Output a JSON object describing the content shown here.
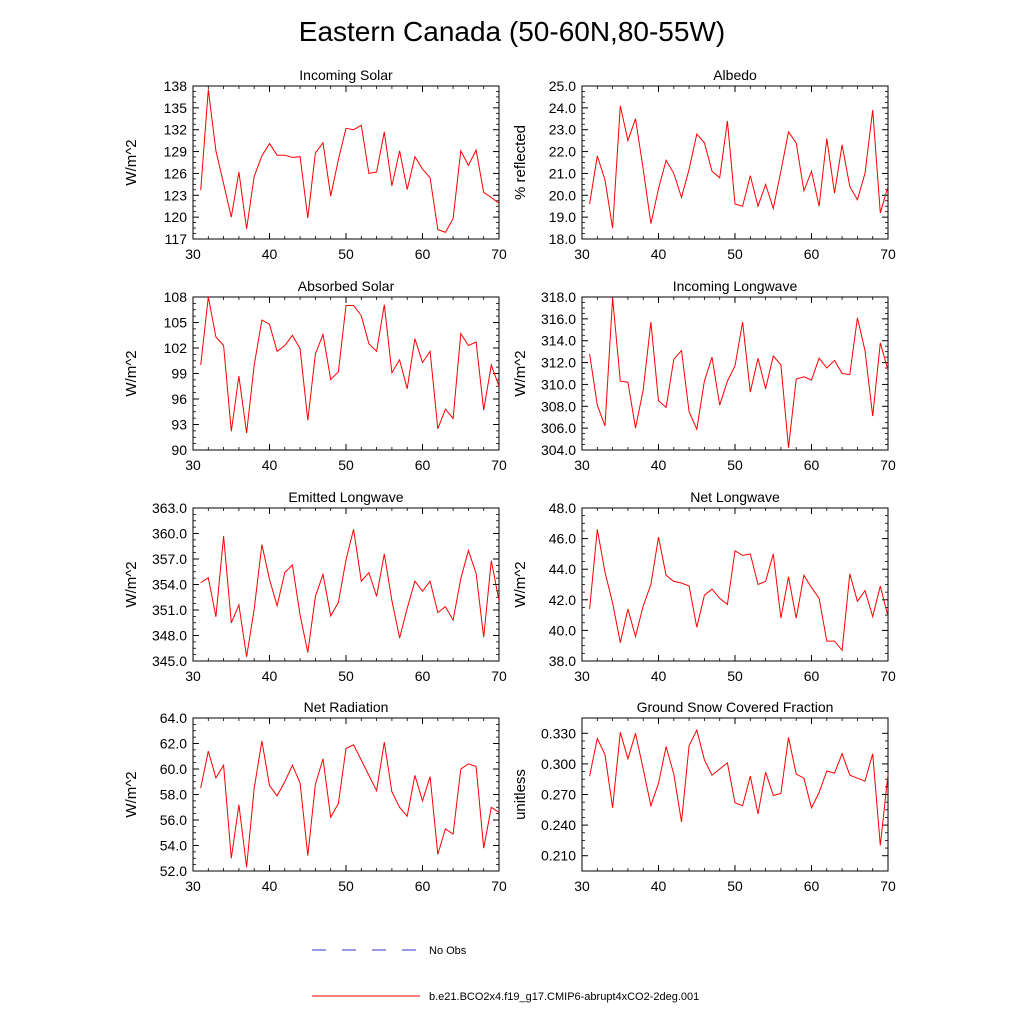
{
  "figure": {
    "title": "Eastern Canada (50-60N,80-55W)",
    "line_color": "#ff0000",
    "obs_color": "#3333cc"
  },
  "legend": {
    "obs_label": "No Obs",
    "model_label": "b.e21.BCO2x4.f19_g17.CMIP6-abrupt4xCO2-2deg.001"
  },
  "chart_data": [
    {
      "type": "line",
      "title": "Incoming Solar",
      "ylabel": "W/m^2",
      "xlim": [
        30,
        70
      ],
      "ylim": [
        117,
        138
      ],
      "yticks": [
        117,
        120,
        123,
        126,
        129,
        132,
        135,
        138
      ],
      "ytick_labels": [
        "117",
        "120",
        "123",
        "126",
        "129",
        "132",
        "135",
        "138"
      ],
      "xticks": [
        30,
        40,
        50,
        60,
        70
      ],
      "xtick_labels": [
        "30",
        "40",
        "50",
        "60",
        "70"
      ],
      "x": [
        31,
        32,
        33,
        34,
        35,
        36,
        37,
        38,
        39,
        40,
        41,
        42,
        43,
        44,
        45,
        46,
        47,
        48,
        49,
        50,
        51,
        52,
        53,
        54,
        55,
        56,
        57,
        58,
        59,
        60,
        61,
        62,
        63,
        64,
        65,
        66,
        67,
        68,
        69,
        70
      ],
      "values": [
        123.7,
        137.5,
        129.1,
        124.6,
        120.0,
        126.2,
        118.4,
        125.6,
        128.4,
        130.1,
        128.5,
        128.5,
        128.2,
        128.3,
        119.9,
        128.8,
        130.2,
        122.9,
        127.9,
        132.2,
        132.0,
        132.6,
        126.0,
        126.2,
        131.7,
        124.3,
        129.1,
        123.8,
        128.3,
        126.6,
        125.4,
        118.3,
        117.9,
        119.8,
        129.1,
        127.1,
        129.2,
        123.4,
        122.7,
        121.9
      ]
    },
    {
      "type": "line",
      "title": "Albedo",
      "ylabel": "% reflected",
      "xlim": [
        30,
        70
      ],
      "ylim": [
        18.0,
        25.0
      ],
      "yticks": [
        18,
        19,
        20,
        21,
        22,
        23,
        24,
        25
      ],
      "ytick_labels": [
        "18.0",
        "19.0",
        "20.0",
        "21.0",
        "22.0",
        "23.0",
        "24.0",
        "25.0"
      ],
      "xticks": [
        30,
        40,
        50,
        60,
        70
      ],
      "xtick_labels": [
        "30",
        "40",
        "50",
        "60",
        "70"
      ],
      "x": [
        31,
        32,
        33,
        34,
        35,
        36,
        37,
        38,
        39,
        40,
        41,
        42,
        43,
        44,
        45,
        46,
        47,
        48,
        49,
        50,
        51,
        52,
        53,
        54,
        55,
        56,
        57,
        58,
        59,
        60,
        61,
        62,
        63,
        64,
        65,
        66,
        67,
        68,
        69,
        70
      ],
      "values": [
        19.6,
        21.8,
        20.7,
        18.5,
        24.1,
        22.5,
        23.5,
        21.2,
        18.7,
        20.3,
        21.6,
        21.0,
        19.9,
        21.2,
        22.8,
        22.4,
        21.1,
        20.8,
        23.4,
        19.6,
        19.5,
        20.9,
        19.5,
        20.5,
        19.4,
        21.1,
        22.9,
        22.4,
        20.2,
        21.1,
        19.5,
        22.6,
        20.1,
        22.3,
        20.4,
        19.8,
        21.0,
        23.9,
        19.2,
        20.4
      ]
    },
    {
      "type": "line",
      "title": "Absorbed Solar",
      "ylabel": "W/m^2",
      "xlim": [
        30,
        70
      ],
      "ylim": [
        90,
        108
      ],
      "yticks": [
        90,
        93,
        96,
        99,
        102,
        105,
        108
      ],
      "ytick_labels": [
        "90",
        "93",
        "96",
        "99",
        "102",
        "105",
        "108"
      ],
      "xticks": [
        30,
        40,
        50,
        60,
        70
      ],
      "xtick_labels": [
        "30",
        "40",
        "50",
        "60",
        "70"
      ],
      "x": [
        31,
        32,
        33,
        34,
        35,
        36,
        37,
        38,
        39,
        40,
        41,
        42,
        43,
        44,
        45,
        46,
        47,
        48,
        49,
        50,
        51,
        52,
        53,
        54,
        55,
        56,
        57,
        58,
        59,
        60,
        61,
        62,
        63,
        64,
        65,
        66,
        67,
        68,
        69,
        70
      ],
      "values": [
        100.0,
        108.0,
        103.3,
        102.3,
        92.2,
        98.7,
        92.0,
        100.0,
        105.3,
        104.8,
        101.6,
        102.3,
        103.5,
        101.9,
        93.5,
        101.3,
        103.6,
        98.3,
        99.2,
        107.0,
        107.0,
        105.8,
        102.5,
        101.6,
        107.1,
        99.1,
        100.6,
        97.2,
        103.1,
        100.3,
        101.6,
        92.5,
        94.8,
        93.7,
        103.7,
        102.3,
        102.7,
        94.7,
        100.0,
        97.5
      ]
    },
    {
      "type": "line",
      "title": "Incoming Longwave",
      "ylabel": "W/m^2",
      "xlim": [
        30,
        70
      ],
      "ylim": [
        304.0,
        318.0
      ],
      "yticks": [
        304,
        306,
        308,
        310,
        312,
        314,
        316,
        318
      ],
      "ytick_labels": [
        "304.0",
        "306.0",
        "308.0",
        "310.0",
        "312.0",
        "314.0",
        "316.0",
        "318.0"
      ],
      "xticks": [
        30,
        40,
        50,
        60,
        70
      ],
      "xtick_labels": [
        "30",
        "40",
        "50",
        "60",
        "70"
      ],
      "x": [
        31,
        32,
        33,
        34,
        35,
        36,
        37,
        38,
        39,
        40,
        41,
        42,
        43,
        44,
        45,
        46,
        47,
        48,
        49,
        50,
        51,
        52,
        53,
        54,
        55,
        56,
        57,
        58,
        59,
        60,
        61,
        62,
        63,
        64,
        65,
        66,
        67,
        68,
        69,
        70
      ],
      "values": [
        312.8,
        308.1,
        306.2,
        317.9,
        310.3,
        310.2,
        306.0,
        309.5,
        315.7,
        308.5,
        307.9,
        312.3,
        313.1,
        307.5,
        305.9,
        310.3,
        312.5,
        308.1,
        310.3,
        311.7,
        315.7,
        309.3,
        312.4,
        309.6,
        312.6,
        311.8,
        304.2,
        310.5,
        310.7,
        310.4,
        312.4,
        311.5,
        312.2,
        311.0,
        310.9,
        316.1,
        313.1,
        307.1,
        313.8,
        311.3
      ]
    },
    {
      "type": "line",
      "title": "Emitted Longwave",
      "ylabel": "W/m^2",
      "xlim": [
        30,
        70
      ],
      "ylim": [
        345.0,
        363.0
      ],
      "yticks": [
        345,
        348,
        351,
        354,
        357,
        360,
        363
      ],
      "ytick_labels": [
        "345.0",
        "348.0",
        "351.0",
        "354.0",
        "357.0",
        "360.0",
        "363.0"
      ],
      "xticks": [
        30,
        40,
        50,
        60,
        70
      ],
      "xtick_labels": [
        "30",
        "40",
        "50",
        "60",
        "70"
      ],
      "x": [
        31,
        32,
        33,
        34,
        35,
        36,
        37,
        38,
        39,
        40,
        41,
        42,
        43,
        44,
        45,
        46,
        47,
        48,
        49,
        50,
        51,
        52,
        53,
        54,
        55,
        56,
        57,
        58,
        59,
        60,
        61,
        62,
        63,
        64,
        65,
        66,
        67,
        68,
        69,
        70
      ],
      "values": [
        354.2,
        354.8,
        350.2,
        359.7,
        349.5,
        351.6,
        345.5,
        351.1,
        358.7,
        354.6,
        351.5,
        355.4,
        356.3,
        350.4,
        346.0,
        352.6,
        355.2,
        350.3,
        351.9,
        356.9,
        360.5,
        354.4,
        355.4,
        352.6,
        357.6,
        352.1,
        347.7,
        351.2,
        354.4,
        353.2,
        354.4,
        350.7,
        351.4,
        349.8,
        354.7,
        358.0,
        355.3,
        347.8,
        356.8,
        352.1
      ]
    },
    {
      "type": "line",
      "title": "Net Longwave",
      "ylabel": "W/m^2",
      "xlim": [
        30,
        70
      ],
      "ylim": [
        38.0,
        48.0
      ],
      "yticks": [
        38,
        40,
        42,
        44,
        46,
        48
      ],
      "ytick_labels": [
        "38.0",
        "40.0",
        "42.0",
        "44.0",
        "46.0",
        "48.0"
      ],
      "xticks": [
        30,
        40,
        50,
        60,
        70
      ],
      "xtick_labels": [
        "30",
        "40",
        "50",
        "60",
        "70"
      ],
      "x": [
        31,
        32,
        33,
        34,
        35,
        36,
        37,
        38,
        39,
        40,
        41,
        42,
        43,
        44,
        45,
        46,
        47,
        48,
        49,
        50,
        51,
        52,
        53,
        54,
        55,
        56,
        57,
        58,
        59,
        60,
        61,
        62,
        63,
        64,
        65,
        66,
        67,
        68,
        69,
        70
      ],
      "values": [
        41.4,
        46.6,
        43.8,
        41.8,
        39.2,
        41.4,
        39.6,
        41.6,
        43.0,
        46.1,
        43.6,
        43.2,
        43.1,
        42.9,
        40.2,
        42.3,
        42.7,
        42.1,
        41.7,
        45.2,
        44.9,
        45.0,
        43.0,
        43.2,
        45.0,
        40.8,
        43.5,
        40.8,
        43.6,
        42.8,
        42.1,
        39.3,
        39.3,
        38.7,
        43.7,
        41.9,
        42.6,
        40.9,
        42.9,
        40.9
      ]
    },
    {
      "type": "line",
      "title": "Net Radiation",
      "ylabel": "W/m^2",
      "xlim": [
        30,
        70
      ],
      "ylim": [
        52.0,
        64.0
      ],
      "yticks": [
        52,
        54,
        56,
        58,
        60,
        62,
        64
      ],
      "ytick_labels": [
        "52.0",
        "54.0",
        "56.0",
        "58.0",
        "60.0",
        "62.0",
        "64.0"
      ],
      "xticks": [
        30,
        40,
        50,
        60,
        70
      ],
      "xtick_labels": [
        "30",
        "40",
        "50",
        "60",
        "70"
      ],
      "x": [
        31,
        32,
        33,
        34,
        35,
        36,
        37,
        38,
        39,
        40,
        41,
        42,
        43,
        44,
        45,
        46,
        47,
        48,
        49,
        50,
        51,
        52,
        53,
        54,
        55,
        56,
        57,
        58,
        59,
        60,
        61,
        62,
        63,
        64,
        65,
        66,
        67,
        68,
        69,
        70
      ],
      "values": [
        58.5,
        61.4,
        59.3,
        60.3,
        53.0,
        57.2,
        52.3,
        58.5,
        62.2,
        58.7,
        57.9,
        59.0,
        60.3,
        58.9,
        53.2,
        58.8,
        60.8,
        56.2,
        57.3,
        61.6,
        61.9,
        60.7,
        59.5,
        58.3,
        62.1,
        58.2,
        57.0,
        56.3,
        59.5,
        57.5,
        59.4,
        53.3,
        55.3,
        54.9,
        60.0,
        60.4,
        60.2,
        53.8,
        57.0,
        56.6
      ]
    },
    {
      "type": "line",
      "title": "Ground Snow Covered Fraction",
      "ylabel": "unitless",
      "xlim": [
        30,
        70
      ],
      "ylim": [
        0.195,
        0.345
      ],
      "yticks": [
        0.21,
        0.24,
        0.27,
        0.3,
        0.33
      ],
      "ytick_labels": [
        "0.210",
        "0.240",
        "0.270",
        "0.300",
        "0.330"
      ],
      "xticks": [
        30,
        40,
        50,
        60,
        70
      ],
      "xtick_labels": [
        "30",
        "40",
        "50",
        "60",
        "70"
      ],
      "x": [
        31,
        32,
        33,
        34,
        35,
        36,
        37,
        38,
        39,
        40,
        41,
        42,
        43,
        44,
        45,
        46,
        47,
        48,
        49,
        50,
        51,
        52,
        53,
        54,
        55,
        56,
        57,
        58,
        59,
        60,
        61,
        62,
        63,
        64,
        65,
        66,
        67,
        68,
        69,
        70
      ],
      "values": [
        0.288,
        0.325,
        0.309,
        0.257,
        0.331,
        0.305,
        0.33,
        0.295,
        0.259,
        0.281,
        0.317,
        0.29,
        0.243,
        0.318,
        0.333,
        0.304,
        0.289,
        0.295,
        0.301,
        0.262,
        0.259,
        0.288,
        0.251,
        0.292,
        0.269,
        0.271,
        0.326,
        0.29,
        0.286,
        0.257,
        0.272,
        0.293,
        0.291,
        0.31,
        0.289,
        0.286,
        0.283,
        0.31,
        0.22,
        0.29
      ]
    }
  ]
}
